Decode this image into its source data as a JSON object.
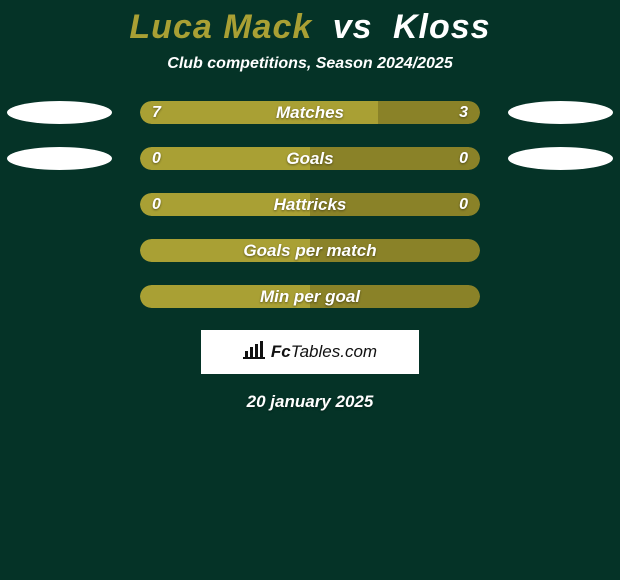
{
  "background_color": "#053327",
  "title": {
    "left": "Luca Mack",
    "vs": "vs",
    "right": "Kloss",
    "left_color": "#a9a034",
    "right_color": "#ffffff",
    "fontsize": 34
  },
  "subtitle": {
    "text": "Club competitions, Season 2024/2025",
    "color": "#ffffff",
    "fontsize": 16
  },
  "rows": [
    {
      "label": "Matches",
      "left_val": "7",
      "right_val": "3",
      "left_pct": 0.7,
      "right_pct": 0.3,
      "show_ellipses": true
    },
    {
      "label": "Goals",
      "left_val": "0",
      "right_val": "0",
      "left_pct": 0.5,
      "right_pct": 0.5,
      "show_ellipses": true
    },
    {
      "label": "Hattricks",
      "left_val": "0",
      "right_val": "0",
      "left_pct": 0.5,
      "right_pct": 0.5,
      "show_ellipses": false
    },
    {
      "label": "Goals per match",
      "left_val": "",
      "right_val": "",
      "left_pct": 0.5,
      "right_pct": 0.5,
      "show_ellipses": false
    },
    {
      "label": "Min per goal",
      "left_val": "",
      "right_val": "",
      "left_pct": 0.5,
      "right_pct": 0.5,
      "show_ellipses": false
    }
  ],
  "bar": {
    "left_color": "#a9a034",
    "right_color": "#8a8228",
    "label_color": "#ffffff",
    "val_color": "#ffffff",
    "label_fontsize": 17,
    "val_fontsize": 16
  },
  "ellipse_color": "#ffffff",
  "logo": {
    "brand_left": "Fc",
    "brand_right": "Tables.com",
    "bg_color": "#ffffff",
    "text_color": "#111111",
    "fontsize": 17
  },
  "date": {
    "text": "20 january 2025",
    "color": "#ffffff",
    "fontsize": 17
  }
}
